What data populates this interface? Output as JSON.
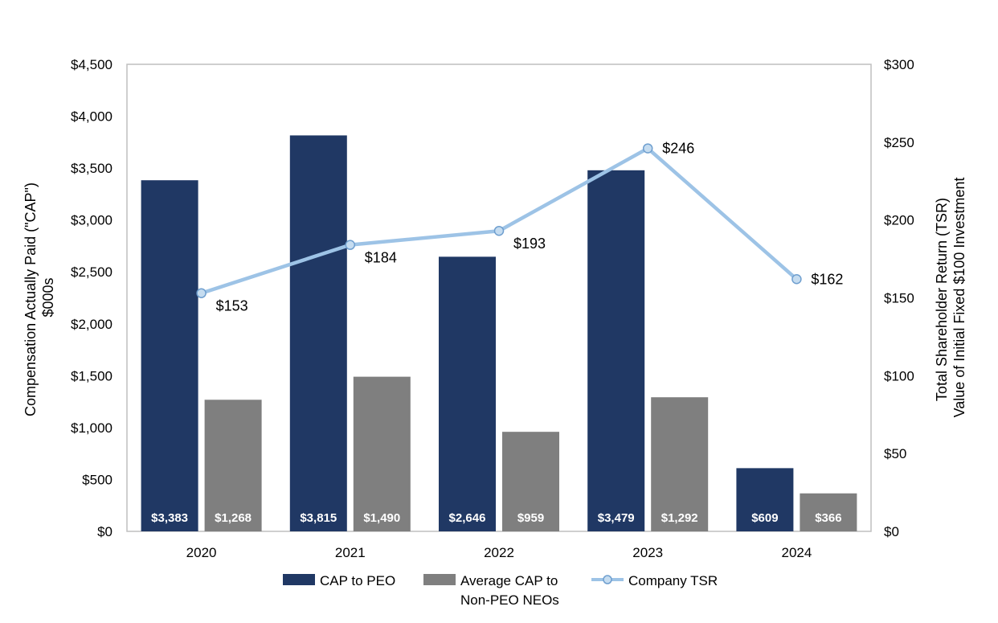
{
  "chart_data": {
    "type": "bar",
    "categories": [
      "2020",
      "2021",
      "2022",
      "2023",
      "2024"
    ],
    "series": [
      {
        "name": "CAP to PEO",
        "kind": "bar",
        "axis": "left",
        "color": "#203864",
        "values": [
          3383,
          3815,
          2646,
          3479,
          609
        ],
        "labels": [
          "$3,383",
          "$3,815",
          "$2,646",
          "$3,479",
          "$609"
        ]
      },
      {
        "name": "Average CAP to Non-PEO NEOs",
        "kind": "bar",
        "axis": "left",
        "color": "#7f7f7f",
        "values": [
          1268,
          1490,
          959,
          1292,
          366
        ],
        "labels": [
          "$1,268",
          "$1,490",
          "$959",
          "$1,292",
          "$366"
        ]
      },
      {
        "name": "Company TSR",
        "kind": "line",
        "axis": "right",
        "color": "#9dc3e6",
        "values": [
          153,
          184,
          193,
          246,
          162
        ],
        "labels": [
          "$153",
          "$184",
          "$193",
          "$246",
          "$162"
        ]
      }
    ],
    "y_left": {
      "label_lines": [
        "Compensation Actually Paid (\"CAP\")",
        "$000s"
      ],
      "range": [
        0,
        4500
      ],
      "ticks": [
        0,
        500,
        1000,
        1500,
        2000,
        2500,
        3000,
        3500,
        4000,
        4500
      ],
      "tick_labels": [
        "$0",
        "$500",
        "$1,000",
        "$1,500",
        "$2,000",
        "$2,500",
        "$3,000",
        "$3,500",
        "$4,000",
        "$4,500"
      ]
    },
    "y_right": {
      "label_lines": [
        "Total Shareholder Return (TSR)",
        "Value of Initial Fixed $100 Investment"
      ],
      "range": [
        0,
        300
      ],
      "ticks": [
        0,
        50,
        100,
        150,
        200,
        250,
        300
      ],
      "tick_labels": [
        "$0",
        "$50",
        "$100",
        "$150",
        "$200",
        "$250",
        "$300"
      ]
    },
    "legend": {
      "position": "bottom",
      "items": [
        {
          "label_lines": [
            "CAP to PEO"
          ],
          "swatch": "bar",
          "color": "#203864"
        },
        {
          "label_lines": [
            "Average CAP to",
            "Non-PEO NEOs"
          ],
          "swatch": "bar",
          "color": "#7f7f7f"
        },
        {
          "label_lines": [
            "Company TSR"
          ],
          "swatch": "line",
          "color": "#9dc3e6"
        }
      ]
    },
    "grid": false
  }
}
